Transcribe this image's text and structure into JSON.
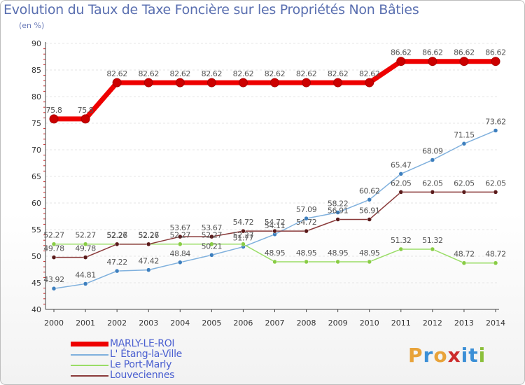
{
  "title": "Evolution du Taux de Taxe Foncière sur les Propriétés Non Bâties",
  "subtitle": "(en %)",
  "logo": {
    "text": "Proxiti",
    "colors": [
      "#e8a33a",
      "#3b8fd6",
      "#e8a33a",
      "#cc2b2b",
      "#3b8fd6",
      "#3b8fd6",
      "#8bbf3a"
    ]
  },
  "chart_data": {
    "type": "line",
    "title": "Evolution du Taux de Taxe Foncière sur les Propriétés Non Bâties",
    "ylabel": "(en %)",
    "ylim": [
      40,
      90
    ],
    "yticks": [
      40,
      45,
      50,
      55,
      60,
      65,
      70,
      75,
      80,
      85,
      90
    ],
    "x": [
      "2000",
      "2001",
      "2002",
      "2003",
      "2004",
      "2005",
      "2006",
      "2007",
      "2008",
      "2009",
      "2010",
      "2011",
      "2012",
      "2013",
      "2014"
    ],
    "series": [
      {
        "name": "MARLY-LE-ROI",
        "color": "#ee0000",
        "marker": "#cc0000",
        "width": 7,
        "values": [
          75.8,
          75.8,
          82.62,
          82.62,
          82.62,
          82.62,
          82.62,
          82.62,
          82.62,
          82.62,
          82.62,
          86.62,
          86.62,
          86.62,
          86.62
        ],
        "labels": [
          "75.8",
          "75.8",
          "82.62",
          "82.62",
          "82.62",
          "82.62",
          "82.62",
          "82.62",
          "82.62",
          "82.62",
          "82.62",
          "86.62",
          "86.62",
          "86.62",
          "86.62"
        ]
      },
      {
        "name": "L' Étang-la-Ville",
        "color": "#7fb0dd",
        "marker": "#3d7fbe",
        "width": 1.5,
        "values": [
          43.92,
          44.81,
          47.22,
          47.42,
          48.84,
          50.21,
          51.77,
          54.11,
          57.09,
          58.22,
          60.62,
          65.47,
          68.09,
          71.15,
          73.62
        ],
        "labels": [
          "43.92",
          "44.81",
          "47.22",
          "47.42",
          "48.84",
          "50.21",
          "51.77",
          "54.11",
          "57.09",
          "58.22",
          "60.62",
          "65.47",
          "68.09",
          "71.15",
          "73.62"
        ]
      },
      {
        "name": "Le Port-Marly",
        "color": "#99dd66",
        "marker": "#88cc44",
        "width": 1.5,
        "values": [
          52.27,
          52.27,
          52.27,
          52.27,
          52.27,
          52.27,
          52.27,
          48.95,
          48.95,
          48.95,
          48.95,
          51.32,
          51.32,
          48.72,
          48.72
        ],
        "labels": [
          "52.27",
          "52.27",
          "52.27",
          "52.27",
          "52.27",
          "52.27",
          "52.27",
          "48.95",
          "48.95",
          "48.95",
          "48.95",
          "51.32",
          "51.32",
          "48.72",
          "48.72"
        ]
      },
      {
        "name": "Louveciennes",
        "color": "#8a3a3a",
        "marker": "#5a1a1a",
        "width": 1.5,
        "values": [
          49.78,
          49.78,
          52.26,
          52.26,
          53.67,
          53.67,
          54.72,
          54.72,
          54.72,
          56.91,
          56.91,
          62.05,
          62.05,
          62.05,
          62.05
        ],
        "labels": [
          "49.78",
          "49.78",
          "52.26",
          "52.26",
          "53.67",
          "53.67",
          "54.72",
          "54.72",
          "54.72",
          "56.91",
          "56.91",
          "62.05",
          "62.05",
          "62.05",
          "62.05"
        ]
      }
    ]
  }
}
